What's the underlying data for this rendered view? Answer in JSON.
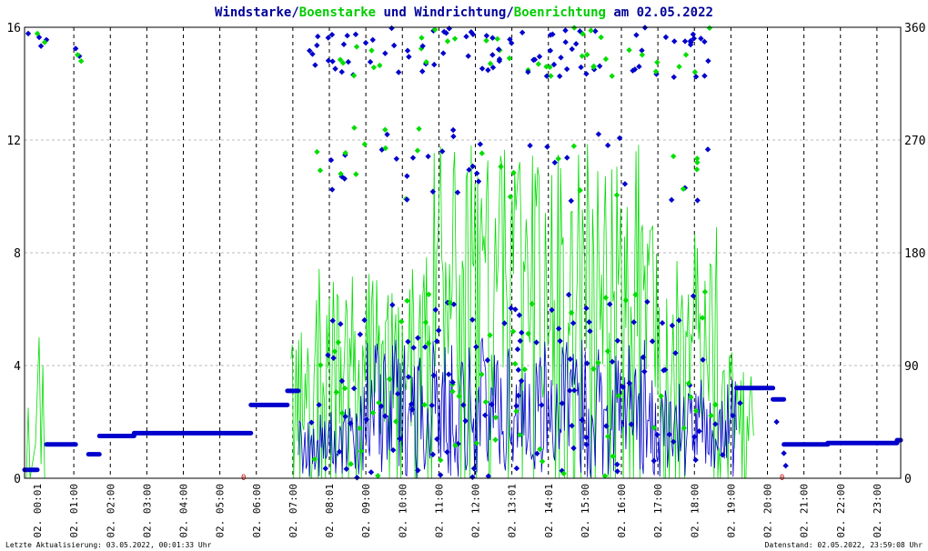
{
  "title": {
    "part1": "Windstarke/",
    "part2": "Boenstarke",
    "part3": " und Windrichtung/",
    "part4": "Boenrichtung",
    "part5": " am 02.05.2022"
  },
  "footer": {
    "left": "Letzte Aktualisierung: 03.05.2022, 00:01:33 Uhr",
    "right": "Datenstand: 02.05.2022, 23:59:08 Uhr"
  },
  "colors": {
    "wind": "#0000cc",
    "gust": "#00dd00",
    "grid": "#bbbbbb",
    "hourline": "#000000",
    "title_wind": "#000099",
    "title_gust": "#00cc00",
    "marker_red": "#cc0000"
  },
  "chart_data": {
    "type": "line",
    "title": "Windstarke/Boenstarke und Windrichtung/Boenrichtung am 02.05.2022",
    "ylim_left": [
      0,
      16
    ],
    "yticks_left": [
      "0",
      "4",
      "8",
      "12",
      "16"
    ],
    "ylim_right": [
      0,
      360
    ],
    "yticks_right": [
      "0",
      "90",
      "180",
      "270",
      "360"
    ],
    "xlim_hours": [
      0,
      24
    ],
    "xtick_labels": [
      "02. 00:01",
      "02. 01:00",
      "02. 02:00",
      "02. 03:00",
      "02. 04:00",
      "02. 05:00",
      "02. 06:00",
      "02. 07:00",
      "02. 08:01",
      "02. 09:00",
      "02. 10:00",
      "02. 11:00",
      "02. 12:00",
      "02. 13:01",
      "02. 14:01",
      "02. 15:00",
      "02. 16:00",
      "02. 17:00",
      "02. 18:00",
      "02. 19:00",
      "02. 20:00",
      "02. 21:00",
      "02. 22:00",
      "02. 23:00"
    ],
    "red_markers_hours": [
      6.0,
      20.75
    ],
    "wind_direction_level_segments": [
      {
        "from": 0.0,
        "to": 0.35,
        "value": 0.3
      },
      {
        "from": 0.6,
        "to": 1.4,
        "value": 1.2
      },
      {
        "from": 1.75,
        "to": 2.05,
        "value": 0.85
      },
      {
        "from": 2.05,
        "to": 3.0,
        "value": 1.5
      },
      {
        "from": 3.0,
        "to": 6.2,
        "value": 1.6
      },
      {
        "from": 6.2,
        "to": 7.2,
        "value": 2.6
      },
      {
        "from": 7.2,
        "to": 7.5,
        "value": 3.1
      },
      {
        "from": 19.5,
        "to": 20.5,
        "value": 3.2
      },
      {
        "from": 20.5,
        "to": 20.8,
        "value": 2.8
      },
      {
        "from": 20.8,
        "to": 22.0,
        "value": 1.2
      },
      {
        "from": 22.0,
        "to": 23.9,
        "value": 1.25
      },
      {
        "from": 23.9,
        "to": 24.0,
        "value": 1.35
      }
    ],
    "series": [
      {
        "name": "Windstarke"
      },
      {
        "name": "Boenstarke"
      },
      {
        "name": "Windrichtung"
      },
      {
        "name": "Boenrichtung"
      }
    ]
  }
}
